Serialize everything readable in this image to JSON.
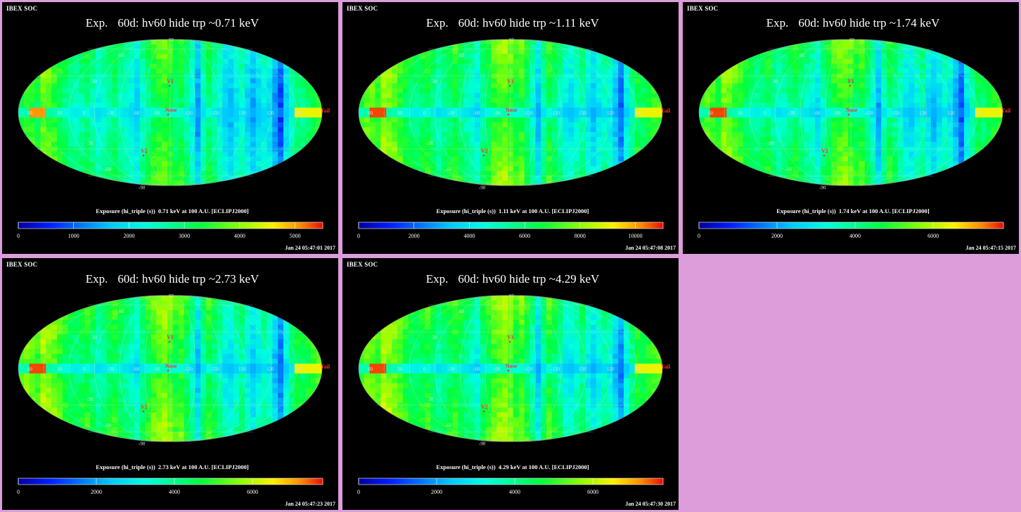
{
  "soc_label": "IBEX SOC",
  "caption_prefix": "Exposure (hi_triple (s))",
  "caption_suffix": "at 100 A.U. [ECLIPJ2000]",
  "title_prefix": "Exp.",
  "title_main": "60d: hv60 hide trp ~",
  "markers": {
    "v1": "V1",
    "v2": "V2",
    "nose": "Nose",
    "tail": "Tail"
  },
  "lat_labels": [
    "60",
    "30",
    "0",
    "-30",
    "-60",
    "-90",
    "90"
  ],
  "lon_labels": [
    "60",
    "30",
    "0",
    "-30",
    "-60",
    "-90",
    "-120",
    "-150",
    "150",
    "120",
    "90"
  ],
  "colors": {
    "background": "#000000",
    "page": "#dd9ddb",
    "marker": "#ff3030",
    "grid": "#d8d8d8"
  },
  "chart_data": [
    {
      "type": "heatmap",
      "title": "Exp.  60d: hv60 hide trp ~0.71 keV",
      "energy": "0.71 keV",
      "colorbar_ticks": [
        "0",
        "1000",
        "2000",
        "3000",
        "4000",
        "5000"
      ],
      "colorbar_range": [
        0,
        5500
      ],
      "date": "Jan 24 05:47:01 2017"
    },
    {
      "type": "heatmap",
      "title": "Exp.  60d: hv60 hide trp ~1.11 keV",
      "energy": "1.11 keV",
      "colorbar_ticks": [
        "0",
        "2000",
        "4000",
        "6000",
        "8000",
        "10000"
      ],
      "colorbar_range": [
        0,
        11000
      ],
      "date": "Jan 24 05:47:08 2017"
    },
    {
      "type": "heatmap",
      "title": "Exp.  60d: hv60 hide trp ~1.74 keV",
      "energy": "1.74 keV",
      "colorbar_ticks": [
        "0",
        "2000",
        "4000",
        "6000"
      ],
      "colorbar_range": [
        0,
        7800
      ],
      "date": "Jan 24 05:47:15 2017"
    },
    {
      "type": "heatmap",
      "title": "Exp.  60d: hv60 hide trp ~2.73 keV",
      "energy": "2.73 keV",
      "colorbar_ticks": [
        "0",
        "2000",
        "4000",
        "6000"
      ],
      "colorbar_range": [
        0,
        7800
      ],
      "date": "Jan 24 05:47:23 2017"
    },
    {
      "type": "heatmap",
      "title": "Exp.  60d: hv60 hide trp ~4.29 keV",
      "energy": "4.29 keV",
      "colorbar_ticks": [
        "0",
        "2000",
        "4000",
        "6000"
      ],
      "colorbar_range": [
        0,
        7800
      ],
      "date": "Jan 24 05:47:30 2017"
    }
  ]
}
